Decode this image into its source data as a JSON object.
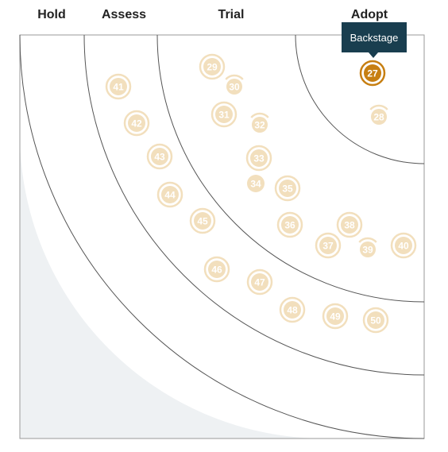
{
  "rings": [
    {
      "id": "hold",
      "label": "Hold"
    },
    {
      "id": "assess",
      "label": "Assess"
    },
    {
      "id": "trial",
      "label": "Trial"
    },
    {
      "id": "adopt",
      "label": "Adopt"
    }
  ],
  "tooltip": {
    "text": "Backstage"
  },
  "colors": {
    "blip_faded": "#f2dfbd",
    "blip_faded_text": "#ffffff",
    "blip_active": "#c77f12",
    "ring_line": "#555555",
    "hold_zone": "#eef1f3",
    "tooltip_bg": "#193e4f"
  },
  "blips": [
    {
      "number": "27",
      "active": true
    },
    {
      "number": "28",
      "moved": true
    },
    {
      "number": "29"
    },
    {
      "number": "30",
      "moved": true
    },
    {
      "number": "31"
    },
    {
      "number": "32",
      "moved": true
    },
    {
      "number": "33"
    },
    {
      "number": "34",
      "plain": true
    },
    {
      "number": "35"
    },
    {
      "number": "36"
    },
    {
      "number": "37"
    },
    {
      "number": "38"
    },
    {
      "number": "39",
      "moved": true
    },
    {
      "number": "40"
    },
    {
      "number": "41"
    },
    {
      "number": "42"
    },
    {
      "number": "43"
    },
    {
      "number": "44"
    },
    {
      "number": "45"
    },
    {
      "number": "46"
    },
    {
      "number": "47"
    },
    {
      "number": "48"
    },
    {
      "number": "49"
    },
    {
      "number": "50"
    }
  ]
}
